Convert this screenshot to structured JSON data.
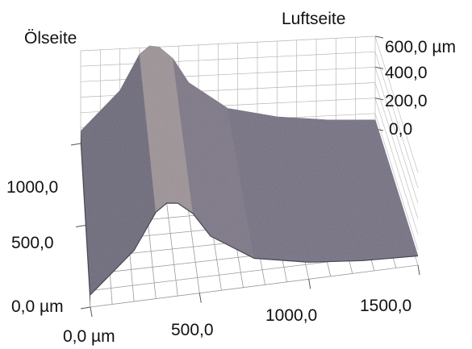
{
  "chart_data": {
    "type": "surface3d",
    "title": "",
    "side_labels": {
      "left": "Ölseite",
      "right": "Luftseite"
    },
    "units": "µm",
    "x_axis": {
      "ticks": [
        "0,0 µm",
        "500,0",
        "1000,0",
        "1500,0"
      ],
      "range": [
        0,
        1500
      ]
    },
    "y_axis": {
      "ticks": [
        "0,0 µm",
        "500,0",
        "1000,0"
      ],
      "range": [
        0,
        1000
      ]
    },
    "z_axis": {
      "ticks": [
        "600,0 µm",
        "400,0",
        "200,0",
        "0,0"
      ],
      "range": [
        0,
        600
      ]
    },
    "profile": {
      "x": [
        0,
        200,
        300,
        350,
        400,
        470,
        550,
        750,
        1000,
        1250,
        1500
      ],
      "z": [
        80,
        330,
        560,
        610,
        600,
        520,
        360,
        180,
        110,
        75,
        60
      ]
    },
    "grid": true,
    "surface_color": "#6f6a7e"
  }
}
